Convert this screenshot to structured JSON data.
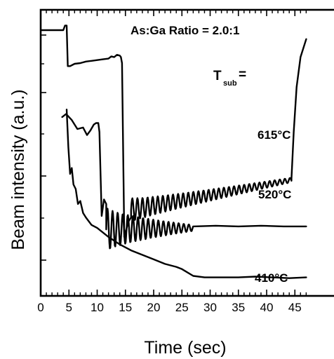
{
  "chart_data": {
    "type": "line",
    "title": "",
    "xlabel": "Time (sec)",
    "ylabel": "Beam intensity (a.u.)",
    "xlim": [
      0,
      47
    ],
    "x_ticks": [
      "0",
      "5",
      "10",
      "15",
      "20",
      "25",
      "30",
      "35",
      "40",
      "45"
    ],
    "annotations": {
      "ratio": "As:Ga Ratio = 2.0:1",
      "tsub_main": "T",
      "tsub_sub": "sub",
      "tsub_eq": "=",
      "label_615": "615°C",
      "label_520": "520°C",
      "label_410": "410°C"
    },
    "series": [
      {
        "label": "615°C",
        "points": [
          [
            0,
            1.68
          ],
          [
            4.0,
            1.68
          ],
          [
            4.3,
            1.71
          ],
          [
            4.6,
            1.71
          ],
          [
            4.8,
            1.44
          ],
          [
            5.2,
            1.44
          ],
          [
            6,
            1.455
          ],
          [
            7,
            1.46
          ],
          [
            8,
            1.47
          ],
          [
            9,
            1.475
          ],
          [
            10,
            1.48
          ],
          [
            11,
            1.485
          ],
          [
            12,
            1.49
          ],
          [
            12.5,
            1.505
          ],
          [
            13,
            1.5
          ],
          [
            13.5,
            1.515
          ],
          [
            14,
            1.51
          ],
          [
            14.2,
            1.5
          ],
          [
            14.4,
            1.46
          ],
          [
            14.8,
            0.3
          ],
          [
            15.5,
            0.4
          ],
          [
            16,
            0.43
          ]
        ],
        "osc": {
          "start": 16,
          "end": 44.4,
          "period": 0.9,
          "amp_start": 0.08,
          "amp_end": 0.015,
          "base_start": 0.48,
          "base_end": 0.68
        },
        "tail": [
          [
            44.4,
            0.69
          ],
          [
            44.8,
            1.0
          ],
          [
            45.3,
            1.3
          ],
          [
            46,
            1.5
          ],
          [
            47,
            1.62
          ]
        ]
      },
      {
        "label": "520°C",
        "points": [
          [
            3.8,
            1.1
          ],
          [
            4.5,
            1.12
          ],
          [
            5.5,
            1.08
          ],
          [
            6.5,
            1.02
          ],
          [
            7.5,
            1.03
          ],
          [
            8.2,
            0.98
          ],
          [
            8.8,
            1.01
          ],
          [
            9.4,
            1.05
          ],
          [
            9.8,
            1.06
          ],
          [
            10.2,
            1.06
          ],
          [
            10.4,
            1.0
          ],
          [
            10.8,
            0.44
          ],
          [
            11.2,
            0.55
          ],
          [
            11.6,
            0.52
          ]
        ],
        "osc": {
          "start": 11.6,
          "end": 27,
          "period": 0.9,
          "amp_start": 0.15,
          "amp_end": 0.02,
          "base_start": 0.35,
          "base_end": 0.36
        },
        "tail": [
          [
            27,
            0.37
          ],
          [
            31,
            0.375
          ],
          [
            35,
            0.37
          ],
          [
            39,
            0.375
          ],
          [
            43,
            0.37
          ],
          [
            47,
            0.37
          ]
        ]
      },
      {
        "label": "410°C",
        "points": [
          [
            4.6,
            1.15
          ],
          [
            4.9,
            0.9
          ],
          [
            5.2,
            0.72
          ],
          [
            5.5,
            0.76
          ],
          [
            5.8,
            0.65
          ],
          [
            6.2,
            0.62
          ],
          [
            6.6,
            0.52
          ],
          [
            7.0,
            0.54
          ],
          [
            7.5,
            0.46
          ],
          [
            8,
            0.43
          ],
          [
            9,
            0.38
          ],
          [
            10,
            0.36
          ],
          [
            12,
            0.3
          ],
          [
            14,
            0.25
          ],
          [
            16,
            0.21
          ],
          [
            18,
            0.18
          ],
          [
            20,
            0.15
          ],
          [
            22,
            0.12
          ],
          [
            24,
            0.1
          ],
          [
            25,
            0.085
          ],
          [
            27,
            0.04
          ],
          [
            29,
            0.03
          ],
          [
            32,
            0.03
          ],
          [
            35,
            0.03
          ],
          [
            38,
            0.035
          ],
          [
            41,
            0.03
          ],
          [
            44,
            0.025
          ],
          [
            47,
            0.03
          ]
        ]
      }
    ],
    "grid": false,
    "legend": "none"
  }
}
